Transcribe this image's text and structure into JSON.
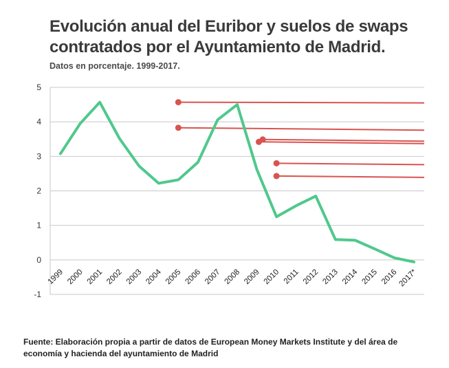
{
  "chart_data": {
    "type": "line",
    "title": "Evolución anual del Euribor y suelos de swaps contratados por el Ayuntamiento de Madrid.",
    "subtitle": "Datos en porcentaje. 1999-2017.",
    "source": "Fuente: Elaboración propia a partir de datos de European Money Markets Institute y del área de economía y hacienda del ayuntamiento de Madrid",
    "categories": [
      "1999",
      "2000",
      "2001",
      "2002",
      "2003",
      "2004",
      "2005",
      "2006",
      "2007",
      "2008",
      "2009",
      "2010",
      "2011",
      "2012",
      "2013",
      "2014",
      "2015",
      "2016",
      "2017*"
    ],
    "y_ticks": [
      "-1",
      "0",
      "1",
      "2",
      "3",
      "4",
      "5"
    ],
    "ylim": [
      -1,
      5
    ],
    "grid": true,
    "series": [
      {
        "color": "#4fc88c",
        "values": [
          3.08,
          3.95,
          4.57,
          3.52,
          2.72,
          2.22,
          2.32,
          2.83,
          4.06,
          4.5,
          2.62,
          1.25,
          1.57,
          1.85,
          0.59,
          0.57,
          0.32,
          0.06,
          -0.06
        ]
      }
    ],
    "floors": {
      "color": "#d9534f",
      "lines": [
        {
          "start": 2005,
          "y_start": 4.57,
          "y_end": 4.55
        },
        {
          "start": 2005,
          "y_start": 3.83,
          "y_end": 3.76
        },
        {
          "start": 2009.3,
          "y_start": 3.49,
          "y_end": 3.44
        },
        {
          "start": 2009.1,
          "y_start": 3.42,
          "y_end": 3.37
        },
        {
          "start": 2010,
          "y_start": 2.8,
          "y_end": 2.76
        },
        {
          "start": 2010,
          "y_start": 2.43,
          "y_end": 2.39
        }
      ]
    }
  }
}
